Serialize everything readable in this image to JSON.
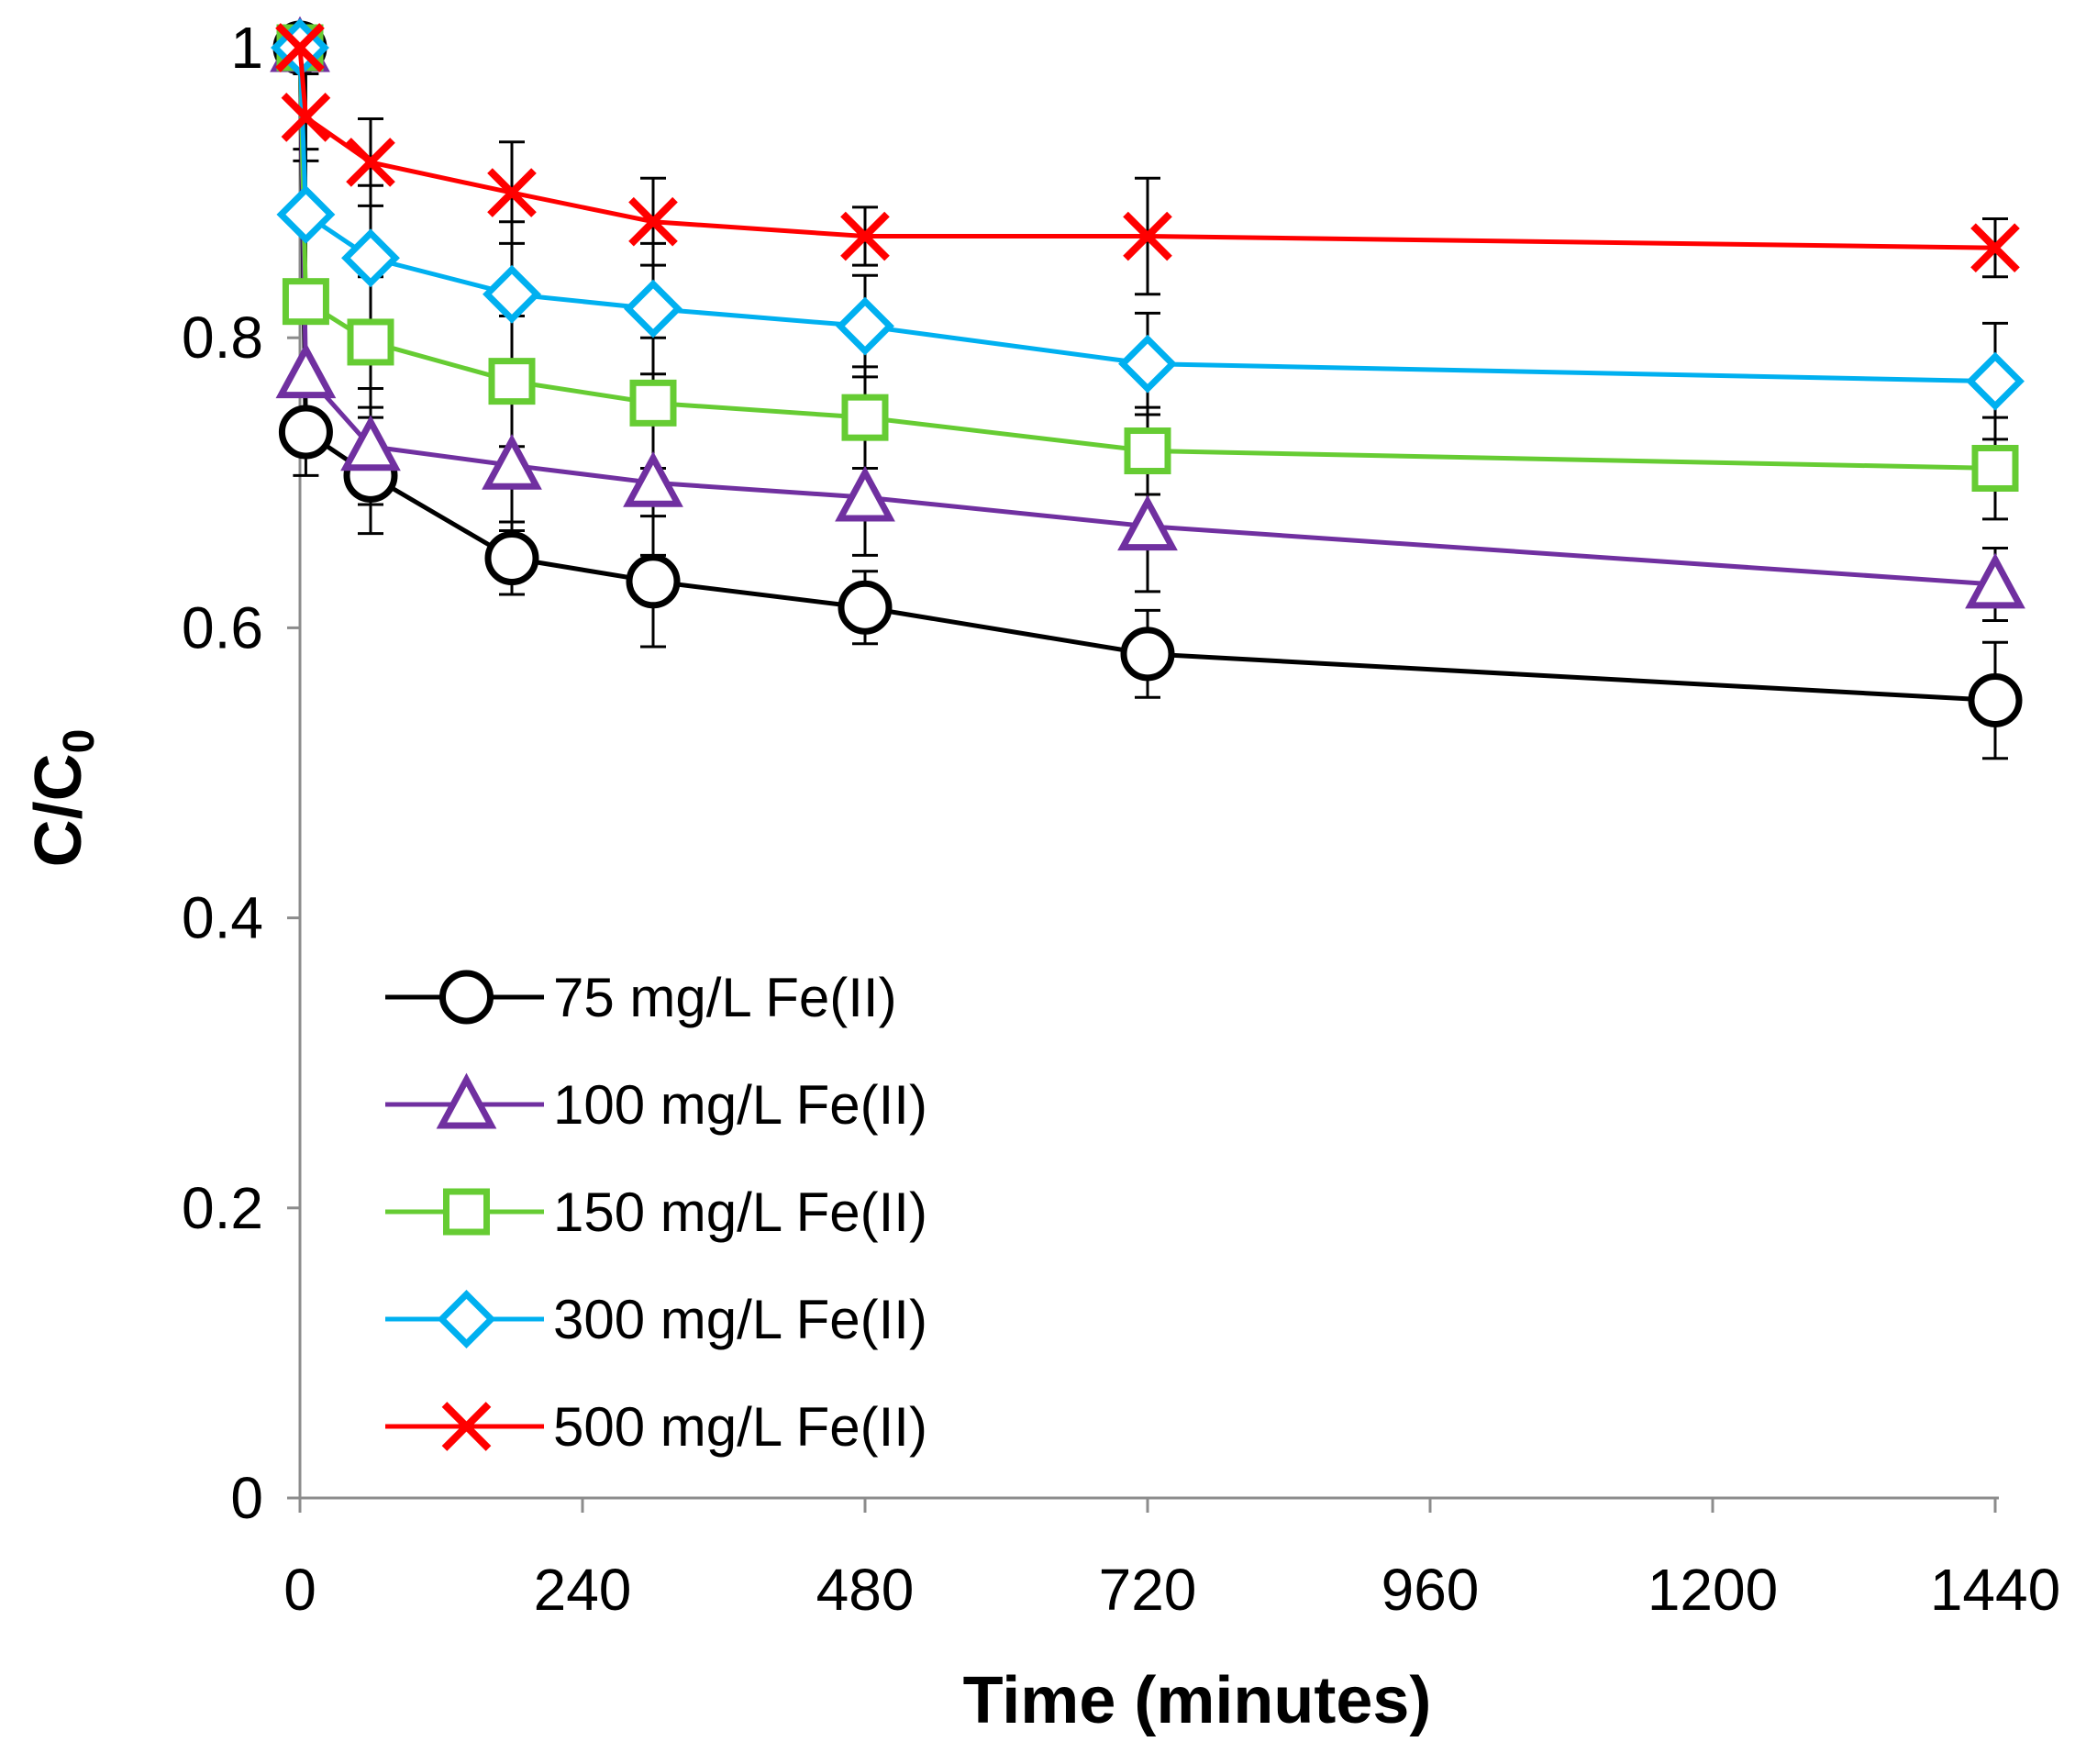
{
  "chart_data": {
    "type": "line",
    "title": "",
    "xlabel": "Time (minutes)",
    "ylabel_main": "C/C",
    "ylabel_subscript": "0",
    "xlim": [
      0,
      1440
    ],
    "ylim": [
      0,
      1
    ],
    "xticks": [
      0,
      240,
      480,
      720,
      960,
      1200,
      1440
    ],
    "xtick_labels": [
      "0",
      "240",
      "480",
      "720",
      "960",
      "1200",
      "1440"
    ],
    "yticks": [
      0,
      0.2,
      0.4,
      0.6,
      0.8,
      1
    ],
    "ytick_labels": [
      "0",
      "0.2",
      "0.4",
      "0.6",
      "0.8",
      "1"
    ],
    "grid": false,
    "legend_position": "lower-left",
    "x": [
      0,
      5,
      60,
      180,
      300,
      480,
      720,
      1440
    ],
    "series": [
      {
        "name": "75 mg/L Fe(II)",
        "color": "#000000",
        "marker": "circle",
        "values": [
          1.0,
          0.735,
          0.705,
          0.648,
          0.632,
          0.614,
          0.582,
          0.55
        ],
        "errors": [
          0,
          0.03,
          0.04,
          0.025,
          0.045,
          0.025,
          0.03,
          0.04
        ]
      },
      {
        "name": "100 mg/L Fe(II)",
        "color": "#7030a0",
        "marker": "triangle",
        "values": [
          1.0,
          0.775,
          0.725,
          0.712,
          0.7,
          0.69,
          0.67,
          0.63
        ],
        "errors": [
          0,
          0.05,
          0.04,
          0.045,
          0.05,
          0.04,
          0.045,
          0.025
        ]
      },
      {
        "name": "150 mg/L Fe(II)",
        "color": "#66cc33",
        "marker": "square",
        "values": [
          1.0,
          0.825,
          0.797,
          0.77,
          0.755,
          0.745,
          0.722,
          0.71
        ],
        "errors": [
          0,
          0.05,
          0.045,
          0.045,
          0.045,
          0.035,
          0.03,
          0.035
        ]
      },
      {
        "name": "300 mg/L Fe(II)",
        "color": "#00b0f0",
        "marker": "diamond",
        "values": [
          1.0,
          0.885,
          0.855,
          0.83,
          0.82,
          0.808,
          0.782,
          0.77
        ],
        "errors": [
          0,
          0.045,
          0.05,
          0.05,
          0.045,
          0.035,
          0.035,
          0.04
        ]
      },
      {
        "name": "500 mg/L Fe(II)",
        "color": "#ff0000",
        "marker": "x",
        "values": [
          1.0,
          0.952,
          0.921,
          0.9,
          0.88,
          0.87,
          0.87,
          0.862
        ],
        "errors": [
          0,
          0.03,
          0.03,
          0.035,
          0.03,
          0.02,
          0.04,
          0.02
        ]
      }
    ]
  }
}
